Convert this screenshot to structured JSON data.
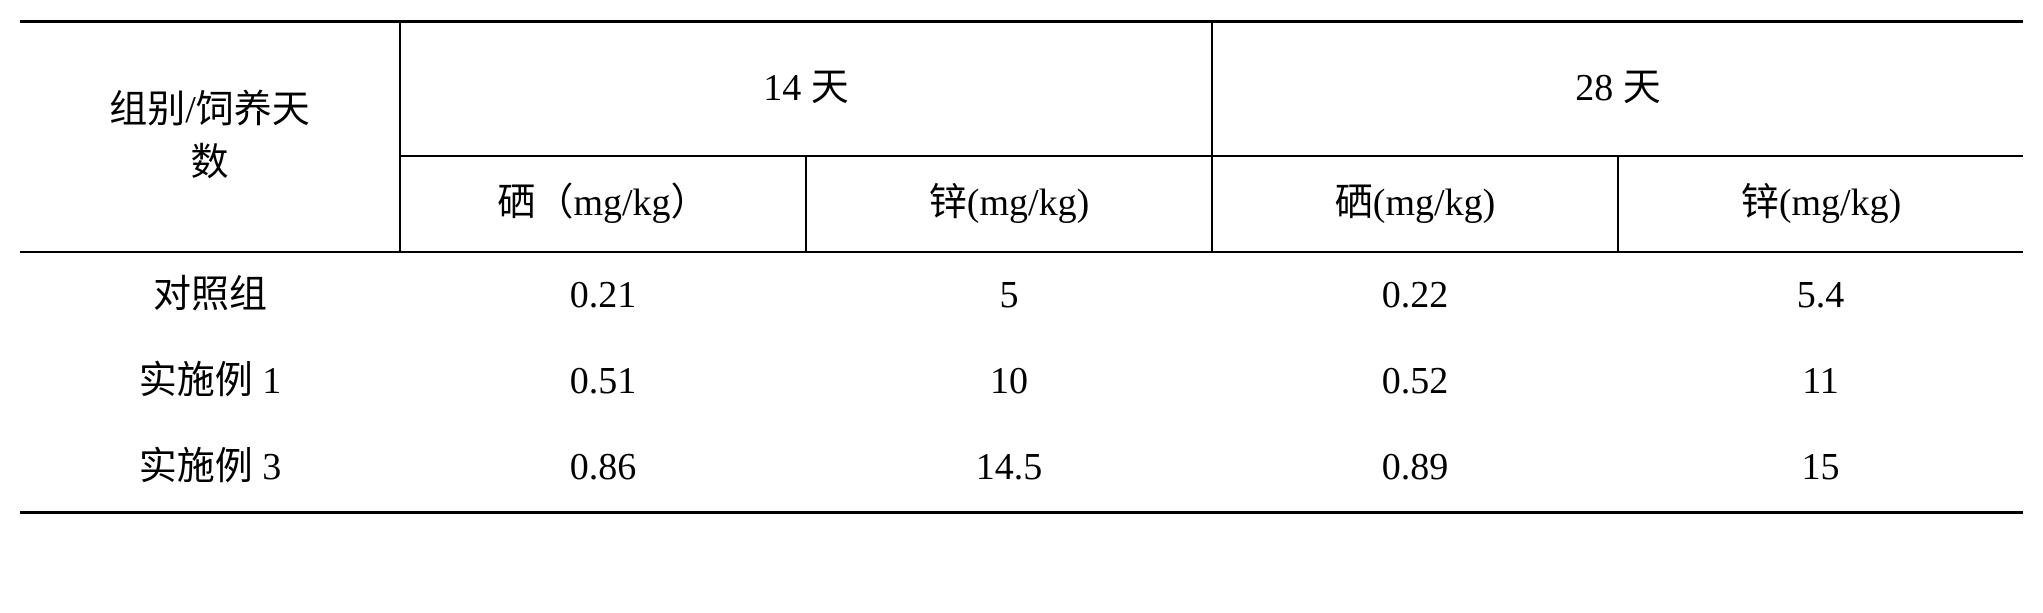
{
  "table": {
    "header": {
      "group_label_line1": "组别/饲养天",
      "group_label_line2": "数",
      "period_14": "14 天",
      "period_28": "28 天",
      "se_label": "硒",
      "zn_label": "锌",
      "se_unit_14": "（mg/kg）",
      "zn_unit_14": "(mg/kg)",
      "se_unit_28": "(mg/kg)",
      "zn_unit_28": "(mg/kg)"
    },
    "rows": [
      {
        "label": "对照组",
        "se14": "0.21",
        "zn14": "5",
        "se28": "0.22",
        "zn28": "5.4"
      },
      {
        "label": "实施例 1",
        "se14": "0.51",
        "zn14": "10",
        "se28": "0.52",
        "zn28": "11"
      },
      {
        "label": "实施例 3",
        "se14": "0.86",
        "zn14": "14.5",
        "se28": "0.89",
        "zn28": "15"
      }
    ],
    "colors": {
      "text": "#000000",
      "background": "#ffffff",
      "rule": "#000000"
    }
  }
}
